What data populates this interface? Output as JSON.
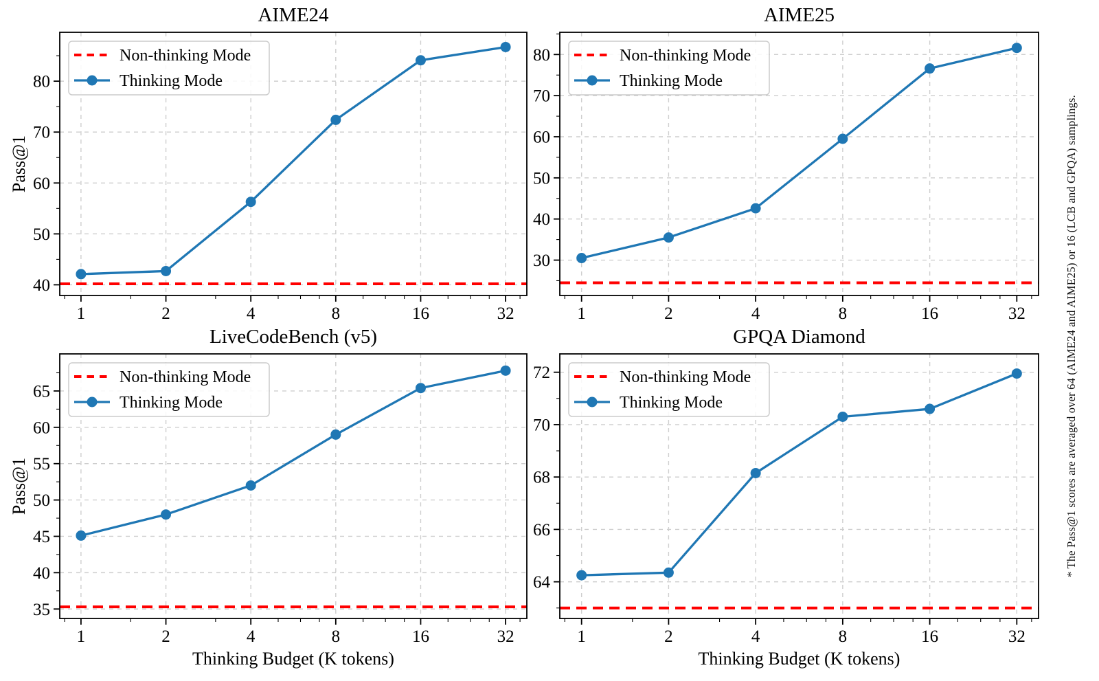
{
  "figure": {
    "side_note": "* The Pass@1 scores are averaged over 64 (AIME24 and AIME25) or 16 (LCB and GPQA) samplings.",
    "colors": {
      "thinking_line": "#1f77b4",
      "non_thinking_line": "#ff0000",
      "grid": "#c9c9c9",
      "axis": "#000000",
      "legend_border": "#cccccc"
    }
  },
  "legend": {
    "items": [
      {
        "label": "Non-thinking Mode",
        "style": "dashed-red"
      },
      {
        "label": "Thinking Mode",
        "style": "solid-blue-marker"
      }
    ]
  },
  "chart_data": [
    {
      "type": "line",
      "title": "AIME24",
      "xlabel": "",
      "ylabel": "Pass@1",
      "xscale": "log2",
      "x": [
        1,
        2,
        4,
        8,
        16,
        32
      ],
      "xtick_labels": [
        "1",
        "2",
        "4",
        "8",
        "16",
        "32"
      ],
      "series": [
        {
          "name": "Thinking Mode",
          "kind": "line+marker",
          "values": [
            42.1,
            42.7,
            56.3,
            72.4,
            84.1,
            86.7
          ]
        },
        {
          "name": "Non-thinking Mode",
          "kind": "hline",
          "value": 40.2
        }
      ],
      "yticks": [
        40,
        50,
        60,
        70,
        80
      ],
      "ylim": [
        37.9,
        89.6
      ],
      "grid": true,
      "legend_position": "upper left"
    },
    {
      "type": "line",
      "title": "AIME25",
      "xlabel": "",
      "ylabel": "",
      "xscale": "log2",
      "x": [
        1,
        2,
        4,
        8,
        16,
        32
      ],
      "xtick_labels": [
        "1",
        "2",
        "4",
        "8",
        "16",
        "32"
      ],
      "series": [
        {
          "name": "Thinking Mode",
          "kind": "line+marker",
          "values": [
            30.5,
            35.5,
            42.6,
            59.5,
            76.6,
            81.6
          ]
        },
        {
          "name": "Non-thinking Mode",
          "kind": "hline",
          "value": 24.5
        }
      ],
      "yticks": [
        30,
        40,
        50,
        60,
        70,
        80
      ],
      "ylim": [
        21.4,
        85.4
      ],
      "grid": true,
      "legend_position": "upper left"
    },
    {
      "type": "line",
      "title": "LiveCodeBench (v5)",
      "xlabel": "Thinking Budget (K tokens)",
      "ylabel": "Pass@1",
      "xscale": "log2",
      "x": [
        1,
        2,
        4,
        8,
        16,
        32
      ],
      "xtick_labels": [
        "1",
        "2",
        "4",
        "8",
        "16",
        "32"
      ],
      "series": [
        {
          "name": "Thinking Mode",
          "kind": "line+marker",
          "values": [
            45.1,
            48.0,
            52.0,
            59.0,
            65.4,
            67.8
          ]
        },
        {
          "name": "Non-thinking Mode",
          "kind": "hline",
          "value": 35.3
        }
      ],
      "yticks": [
        35,
        40,
        45,
        50,
        55,
        60,
        65
      ],
      "ylim": [
        33.7,
        70.1
      ],
      "grid": true,
      "legend_position": "upper left"
    },
    {
      "type": "line",
      "title": "GPQA Diamond",
      "xlabel": "Thinking Budget (K tokens)",
      "ylabel": "",
      "xscale": "log2",
      "x": [
        1,
        2,
        4,
        8,
        16,
        32
      ],
      "xtick_labels": [
        "1",
        "2",
        "4",
        "8",
        "16",
        "32"
      ],
      "series": [
        {
          "name": "Thinking Mode",
          "kind": "line+marker",
          "values": [
            64.25,
            64.35,
            68.15,
            70.3,
            70.6,
            71.95
          ]
        },
        {
          "name": "Non-thinking Mode",
          "kind": "hline",
          "value": 63.0
        }
      ],
      "yticks": [
        64,
        66,
        68,
        70,
        72
      ],
      "ylim": [
        62.6,
        72.7
      ],
      "grid": true,
      "legend_position": "upper left"
    }
  ]
}
